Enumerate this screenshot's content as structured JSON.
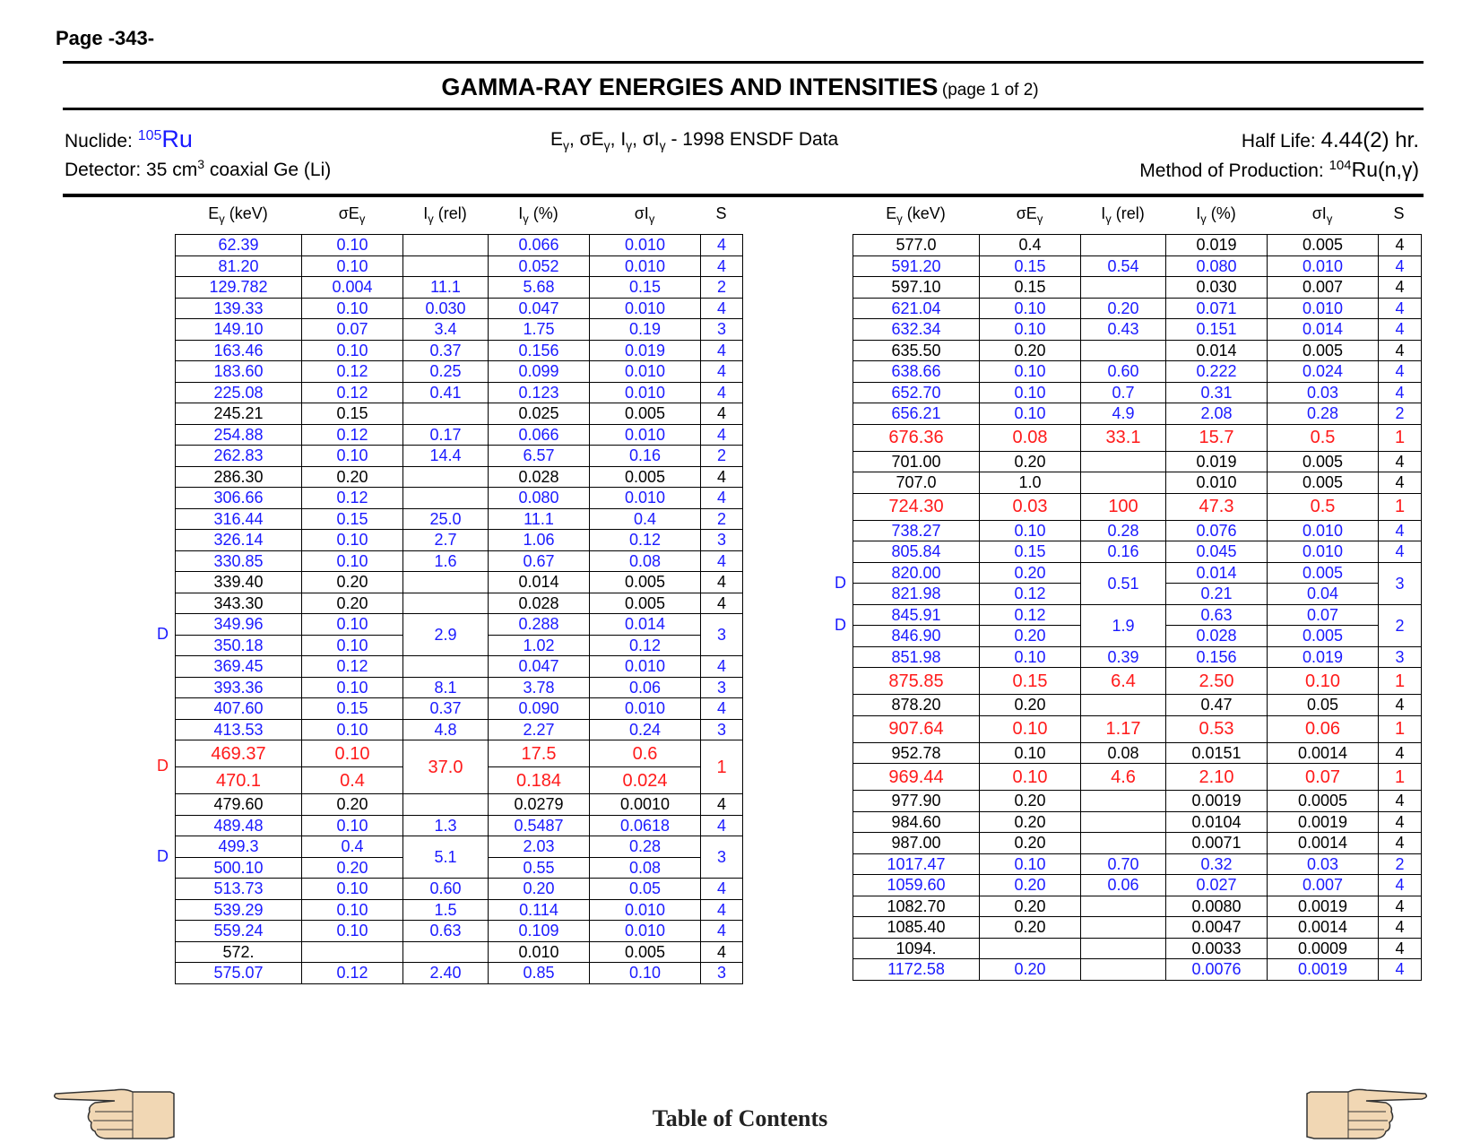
{
  "page_label": "Page -343-",
  "title": "GAMMA-RAY ENERGIES AND INTENSITIES",
  "title_sub": "(page 1 of 2)",
  "nuclide": {
    "label": "Nuclide:",
    "mass": "105",
    "symbol": "Ru"
  },
  "data_source": "- 1998 ENSDF Data",
  "half_life": {
    "label": "Half Life:",
    "value": "4.44(2) hr."
  },
  "detector": {
    "label": "Detector: 35 cm",
    "sup": "3",
    "rest": " coaxial Ge (Li)"
  },
  "production": {
    "label": "Method of Production: ",
    "mass": "104",
    "reaction": "Ru(n,γ)"
  },
  "columns": [
    "Eγ (keV)",
    "σEγ",
    "Iγ (rel)",
    "Iγ (%)",
    "σIγ",
    "S"
  ],
  "colors": {
    "blue": "#1a1aff",
    "red": "#ff1a1a",
    "black": "#000000"
  },
  "footer": {
    "toc_label": "Table of Contents",
    "left_icon": "hand-pointing-left-icon",
    "right_icon": "hand-pointing-right-icon"
  },
  "left_table": {
    "rows": [
      {
        "e": "62.39",
        "se": "0.10",
        "irel": "",
        "ipct": "0.066",
        "si": "0.010",
        "s": "4",
        "c": "blue"
      },
      {
        "e": "81.20",
        "se": "0.10",
        "irel": "",
        "ipct": "0.052",
        "si": "0.010",
        "s": "4",
        "c": "blue"
      },
      {
        "e": "129.782",
        "se": "0.004",
        "irel": "11.1",
        "ipct": "5.68",
        "si": "0.15",
        "s": "2",
        "c": "blue"
      },
      {
        "e": "139.33",
        "se": "0.10",
        "irel": "0.030",
        "ipct": "0.047",
        "si": "0.010",
        "s": "4",
        "c": "blue"
      },
      {
        "e": "149.10",
        "se": "0.07",
        "irel": "3.4",
        "ipct": "1.75",
        "si": "0.19",
        "s": "3",
        "c": "blue"
      },
      {
        "e": "163.46",
        "se": "0.10",
        "irel": "0.37",
        "ipct": "0.156",
        "si": "0.019",
        "s": "4",
        "c": "blue"
      },
      {
        "e": "183.60",
        "se": "0.12",
        "irel": "0.25",
        "ipct": "0.099",
        "si": "0.010",
        "s": "4",
        "c": "blue"
      },
      {
        "e": "225.08",
        "se": "0.12",
        "irel": "0.41",
        "ipct": "0.123",
        "si": "0.010",
        "s": "4",
        "c": "blue"
      },
      {
        "e": "245.21",
        "se": "0.15",
        "irel": "",
        "ipct": "0.025",
        "si": "0.005",
        "s": "4",
        "c": "black"
      },
      {
        "e": "254.88",
        "se": "0.12",
        "irel": "0.17",
        "ipct": "0.066",
        "si": "0.010",
        "s": "4",
        "c": "blue"
      },
      {
        "e": "262.83",
        "se": "0.10",
        "irel": "14.4",
        "ipct": "6.57",
        "si": "0.16",
        "s": "2",
        "c": "blue"
      },
      {
        "e": "286.30",
        "se": "0.20",
        "irel": "",
        "ipct": "0.028",
        "si": "0.005",
        "s": "4",
        "c": "black"
      },
      {
        "e": "306.66",
        "se": "0.12",
        "irel": "",
        "ipct": "0.080",
        "si": "0.010",
        "s": "4",
        "c": "blue"
      },
      {
        "e": "316.44",
        "se": "0.15",
        "irel": "25.0",
        "ipct": "11.1",
        "si": "0.4",
        "s": "2",
        "c": "blue"
      },
      {
        "e": "326.14",
        "se": "0.10",
        "irel": "2.7",
        "ipct": "1.06",
        "si": "0.12",
        "s": "3",
        "c": "blue"
      },
      {
        "e": "330.85",
        "se": "0.10",
        "irel": "1.6",
        "ipct": "0.67",
        "si": "0.08",
        "s": "4",
        "c": "blue"
      },
      {
        "e": "339.40",
        "se": "0.20",
        "irel": "",
        "ipct": "0.014",
        "si": "0.005",
        "s": "4",
        "c": "black"
      },
      {
        "e": "343.30",
        "se": "0.20",
        "irel": "",
        "ipct": "0.028",
        "si": "0.005",
        "s": "4",
        "c": "black"
      },
      {
        "e": "349.96",
        "se": "0.10",
        "irel": "2.9",
        "ipct": "0.288",
        "si": "0.014",
        "s": "3",
        "c": "blue",
        "d": "D",
        "span": 2
      },
      {
        "e": "350.18",
        "se": "0.10",
        "ipct": "1.02",
        "si": "0.12",
        "c": "blue",
        "cont": true
      },
      {
        "e": "369.45",
        "se": "0.12",
        "irel": "",
        "ipct": "0.047",
        "si": "0.010",
        "s": "4",
        "c": "blue"
      },
      {
        "e": "393.36",
        "se": "0.10",
        "irel": "8.1",
        "ipct": "3.78",
        "si": "0.06",
        "s": "3",
        "c": "blue"
      },
      {
        "e": "407.60",
        "se": "0.15",
        "irel": "0.37",
        "ipct": "0.090",
        "si": "0.010",
        "s": "4",
        "c": "blue"
      },
      {
        "e": "413.53",
        "se": "0.10",
        "irel": "4.8",
        "ipct": "2.27",
        "si": "0.24",
        "s": "3",
        "c": "blue"
      },
      {
        "e": "469.37",
        "se": "0.10",
        "irel": "37.0",
        "ipct": "17.5",
        "si": "0.6",
        "s": "1",
        "c": "red",
        "big": true,
        "d": "D",
        "span": 2
      },
      {
        "e": "470.1",
        "se": "0.4",
        "ipct": "0.184",
        "si": "0.024",
        "c": "red",
        "big": true,
        "cont": true
      },
      {
        "e": "479.60",
        "se": "0.20",
        "irel": "",
        "ipct": "0.0279",
        "si": "0.0010",
        "s": "4",
        "c": "black"
      },
      {
        "e": "489.48",
        "se": "0.10",
        "irel": "1.3",
        "ipct": "0.5487",
        "si": "0.0618",
        "s": "4",
        "c": "blue"
      },
      {
        "e": "499.3",
        "se": "0.4",
        "irel": "5.1",
        "ipct": "2.03",
        "si": "0.28",
        "s": "3",
        "c": "blue",
        "d": "D",
        "span": 2
      },
      {
        "e": "500.10",
        "se": "0.20",
        "ipct": "0.55",
        "si": "0.08",
        "c": "blue",
        "cont": true
      },
      {
        "e": "513.73",
        "se": "0.10",
        "irel": "0.60",
        "ipct": "0.20",
        "si": "0.05",
        "s": "4",
        "c": "blue"
      },
      {
        "e": "539.29",
        "se": "0.10",
        "irel": "1.5",
        "ipct": "0.114",
        "si": "0.010",
        "s": "4",
        "c": "blue"
      },
      {
        "e": "559.24",
        "se": "0.10",
        "irel": "0.63",
        "ipct": "0.109",
        "si": "0.010",
        "s": "4",
        "c": "blue"
      },
      {
        "e": "572.",
        "se": "",
        "irel": "",
        "ipct": "0.010",
        "si": "0.005",
        "s": "4",
        "c": "black"
      },
      {
        "e": "575.07",
        "se": "0.12",
        "irel": "2.40",
        "ipct": "0.85",
        "si": "0.10",
        "s": "3",
        "c": "blue"
      }
    ]
  },
  "right_table": {
    "rows": [
      {
        "e": "577.0",
        "se": "0.4",
        "irel": "",
        "ipct": "0.019",
        "si": "0.005",
        "s": "4",
        "c": "black"
      },
      {
        "e": "591.20",
        "se": "0.15",
        "irel": "0.54",
        "ipct": "0.080",
        "si": "0.010",
        "s": "4",
        "c": "blue"
      },
      {
        "e": "597.10",
        "se": "0.15",
        "irel": "",
        "ipct": "0.030",
        "si": "0.007",
        "s": "4",
        "c": "black"
      },
      {
        "e": "621.04",
        "se": "0.10",
        "irel": "0.20",
        "ipct": "0.071",
        "si": "0.010",
        "s": "4",
        "c": "blue"
      },
      {
        "e": "632.34",
        "se": "0.10",
        "irel": "0.43",
        "ipct": "0.151",
        "si": "0.014",
        "s": "4",
        "c": "blue"
      },
      {
        "e": "635.50",
        "se": "0.20",
        "irel": "",
        "ipct": "0.014",
        "si": "0.005",
        "s": "4",
        "c": "black"
      },
      {
        "e": "638.66",
        "se": "0.10",
        "irel": "0.60",
        "ipct": "0.222",
        "si": "0.024",
        "s": "4",
        "c": "blue"
      },
      {
        "e": "652.70",
        "se": "0.10",
        "irel": "0.7",
        "ipct": "0.31",
        "si": "0.03",
        "s": "4",
        "c": "blue"
      },
      {
        "e": "656.21",
        "se": "0.10",
        "irel": "4.9",
        "ipct": "2.08",
        "si": "0.28",
        "s": "2",
        "c": "blue"
      },
      {
        "e": "676.36",
        "se": "0.08",
        "irel": "33.1",
        "ipct": "15.7",
        "si": "0.5",
        "s": "1",
        "c": "red",
        "big": true
      },
      {
        "e": "701.00",
        "se": "0.20",
        "irel": "",
        "ipct": "0.019",
        "si": "0.005",
        "s": "4",
        "c": "black"
      },
      {
        "e": "707.0",
        "se": "1.0",
        "irel": "",
        "ipct": "0.010",
        "si": "0.005",
        "s": "4",
        "c": "black"
      },
      {
        "e": "724.30",
        "se": "0.03",
        "irel": "100",
        "ipct": "47.3",
        "si": "0.5",
        "s": "1",
        "c": "red",
        "big": true
      },
      {
        "e": "738.27",
        "se": "0.10",
        "irel": "0.28",
        "ipct": "0.076",
        "si": "0.010",
        "s": "4",
        "c": "blue"
      },
      {
        "e": "805.84",
        "se": "0.15",
        "irel": "0.16",
        "ipct": "0.045",
        "si": "0.010",
        "s": "4",
        "c": "blue"
      },
      {
        "e": "820.00",
        "se": "0.20",
        "irel": "0.51",
        "ipct": "0.014",
        "si": "0.005",
        "s": "3",
        "c": "blue",
        "d": "D",
        "span": 2
      },
      {
        "e": "821.98",
        "se": "0.12",
        "ipct": "0.21",
        "si": "0.04",
        "c": "blue",
        "cont": true
      },
      {
        "e": "845.91",
        "se": "0.12",
        "irel": "1.9",
        "ipct": "0.63",
        "si": "0.07",
        "s": "2",
        "c": "blue",
        "d": "D",
        "span": 2
      },
      {
        "e": "846.90",
        "se": "0.20",
        "ipct": "0.028",
        "si": "0.005",
        "c": "blue",
        "cont": true
      },
      {
        "e": "851.98",
        "se": "0.10",
        "irel": "0.39",
        "ipct": "0.156",
        "si": "0.019",
        "s": "3",
        "c": "blue"
      },
      {
        "e": "875.85",
        "se": "0.15",
        "irel": "6.4",
        "ipct": "2.50",
        "si": "0.10",
        "s": "1",
        "c": "red",
        "big": true
      },
      {
        "e": "878.20",
        "se": "0.20",
        "irel": "",
        "ipct": "0.47",
        "si": "0.05",
        "s": "4",
        "c": "black"
      },
      {
        "e": "907.64",
        "se": "0.10",
        "irel": "1.17",
        "ipct": "0.53",
        "si": "0.06",
        "s": "1",
        "c": "red",
        "big": true
      },
      {
        "e": "952.78",
        "se": "0.10",
        "irel": "0.08",
        "ipct": "0.0151",
        "si": "0.0014",
        "s": "4",
        "c": "black"
      },
      {
        "e": "969.44",
        "se": "0.10",
        "irel": "4.6",
        "ipct": "2.10",
        "si": "0.07",
        "s": "1",
        "c": "red",
        "big": true
      },
      {
        "e": "977.90",
        "se": "0.20",
        "irel": "",
        "ipct": "0.0019",
        "si": "0.0005",
        "s": "4",
        "c": "black"
      },
      {
        "e": "984.60",
        "se": "0.20",
        "irel": "",
        "ipct": "0.0104",
        "si": "0.0019",
        "s": "4",
        "c": "black"
      },
      {
        "e": "987.00",
        "se": "0.20",
        "irel": "",
        "ipct": "0.0071",
        "si": "0.0014",
        "s": "4",
        "c": "black"
      },
      {
        "e": "1017.47",
        "se": "0.10",
        "irel": "0.70",
        "ipct": "0.32",
        "si": "0.03",
        "s": "2",
        "c": "blue"
      },
      {
        "e": "1059.60",
        "se": "0.20",
        "irel": "0.06",
        "ipct": "0.027",
        "si": "0.007",
        "s": "4",
        "c": "blue"
      },
      {
        "e": "1082.70",
        "se": "0.20",
        "irel": "",
        "ipct": "0.0080",
        "si": "0.0019",
        "s": "4",
        "c": "black"
      },
      {
        "e": "1085.40",
        "se": "0.20",
        "irel": "",
        "ipct": "0.0047",
        "si": "0.0014",
        "s": "4",
        "c": "black"
      },
      {
        "e": "1094.",
        "se": "",
        "irel": "",
        "ipct": "0.0033",
        "si": "0.0009",
        "s": "4",
        "c": "black"
      },
      {
        "e": "1172.58",
        "se": "0.20",
        "irel": "",
        "ipct": "0.0076",
        "si": "0.0019",
        "s": "4",
        "c": "blue"
      }
    ]
  }
}
